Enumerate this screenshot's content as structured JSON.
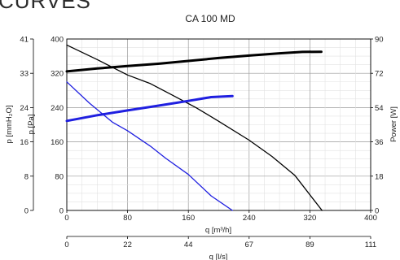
{
  "page_heading": "CURVES",
  "chart_data": {
    "type": "line",
    "title": "CA 100 MD",
    "xlabel": "q [m³/h]",
    "x2label": "q [l/s]",
    "ylabel_left_pa": "p [Pa]",
    "ylabel_left_mmh2o": "p [mmH₂O]",
    "ylabel_right": "Power [W]",
    "xlim": [
      0,
      400
    ],
    "ylim_pa": [
      0,
      400
    ],
    "ylim_mmh2o": [
      0,
      41
    ],
    "ylim_power": [
      0,
      90
    ],
    "x_ticks": [
      "0",
      "80",
      "160",
      "240",
      "320",
      "400"
    ],
    "x2_ticks": [
      "0",
      "22",
      "44",
      "67",
      "89",
      "111"
    ],
    "y_pa_ticks": [
      "0",
      "80",
      "160",
      "240",
      "320",
      "400"
    ],
    "y_mmh2o_ticks": [
      "0",
      "8",
      "16",
      "24",
      "33",
      "41"
    ],
    "y_power_ticks": [
      "0",
      "18",
      "36",
      "54",
      "72",
      "90"
    ],
    "grid": true,
    "series": [
      {
        "kind": "pressure",
        "axis": "pa",
        "color": "#000000",
        "x": [
          0,
          40,
          80,
          110,
          140,
          170,
          200,
          240,
          270,
          300,
          336
        ],
        "y": [
          386,
          352,
          316,
          296,
          268,
          240,
          208,
          164,
          126,
          82,
          0
        ]
      },
      {
        "kind": "pressure",
        "axis": "pa",
        "color": "#1f1fe0",
        "x": [
          0,
          30,
          60,
          80,
          110,
          130,
          160,
          190,
          218
        ],
        "y": [
          300,
          250,
          206,
          186,
          150,
          122,
          84,
          34,
          0
        ]
      },
      {
        "kind": "power",
        "axis": "power",
        "color": "#000000",
        "x": [
          0,
          40,
          80,
          120,
          160,
          200,
          240,
          280,
          310,
          335
        ],
        "y": [
          73,
          74.5,
          75.8,
          77,
          78.5,
          80,
          81.3,
          82.5,
          83.2,
          83.3
        ]
      },
      {
        "kind": "power",
        "axis": "power",
        "color": "#1f1fe0",
        "x": [
          0,
          40,
          80,
          120,
          160,
          190,
          218
        ],
        "y": [
          47,
          50,
          52.5,
          55,
          57.5,
          59.5,
          60
        ]
      }
    ]
  }
}
